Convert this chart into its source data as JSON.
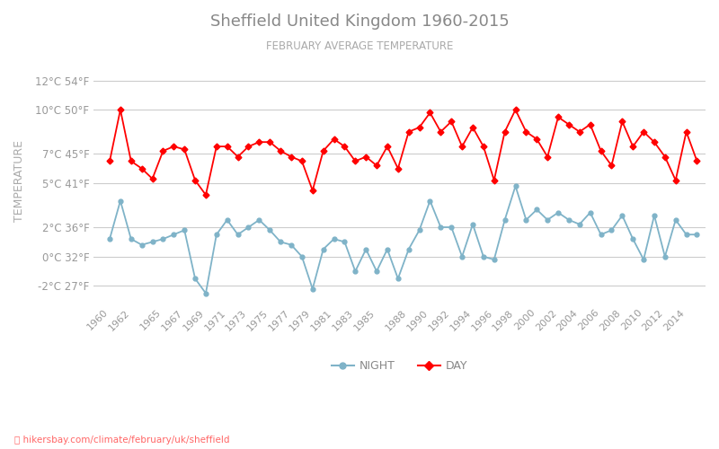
{
  "title": "Sheffield United Kingdom 1960-2015",
  "subtitle": "FEBRUARY AVERAGE TEMPERATURE",
  "ylabel": "TEMPERATURE",
  "footer": "hikersbay.com/climate/february/uk/sheffield",
  "bg_color": "#ffffff",
  "grid_color": "#cccccc",
  "tick_color": "#999999",
  "years": [
    1960,
    1961,
    1962,
    1963,
    1964,
    1965,
    1966,
    1967,
    1968,
    1969,
    1970,
    1971,
    1972,
    1973,
    1974,
    1975,
    1976,
    1977,
    1978,
    1979,
    1980,
    1981,
    1982,
    1983,
    1984,
    1985,
    1986,
    1987,
    1988,
    1989,
    1990,
    1991,
    1992,
    1993,
    1994,
    1995,
    1996,
    1997,
    1998,
    1999,
    2000,
    2001,
    2002,
    2003,
    2004,
    2005,
    2006,
    2007,
    2008,
    2009,
    2010,
    2011,
    2012,
    2013,
    2014,
    2015
  ],
  "day_temps": [
    6.5,
    10.0,
    6.5,
    6.0,
    5.3,
    7.2,
    7.5,
    7.3,
    5.2,
    4.2,
    7.5,
    7.5,
    6.8,
    7.5,
    7.8,
    7.8,
    7.2,
    6.8,
    6.5,
    4.5,
    7.2,
    8.0,
    7.5,
    6.5,
    6.8,
    6.2,
    7.5,
    6.0,
    8.5,
    8.8,
    9.8,
    8.5,
    9.2,
    7.5,
    8.8,
    7.5,
    5.2,
    8.5,
    10.0,
    8.5,
    8.0,
    6.8,
    9.5,
    9.0,
    8.5,
    9.0,
    7.2,
    6.2,
    9.2,
    7.5,
    8.5,
    7.8,
    6.8,
    5.2,
    8.5,
    6.5
  ],
  "night_temps": [
    1.2,
    3.8,
    1.2,
    0.8,
    1.0,
    1.2,
    1.5,
    1.8,
    -1.5,
    -2.5,
    1.5,
    2.5,
    1.5,
    2.0,
    2.5,
    1.8,
    1.0,
    0.8,
    0.0,
    -2.2,
    0.5,
    1.2,
    1.0,
    -1.0,
    0.5,
    -1.0,
    0.5,
    -1.5,
    0.5,
    1.8,
    3.8,
    2.0,
    2.0,
    0.0,
    2.2,
    0.0,
    -0.2,
    2.5,
    4.8,
    2.5,
    3.2,
    2.5,
    3.0,
    2.5,
    2.2,
    3.0,
    1.5,
    1.8,
    2.8,
    1.2,
    -0.2,
    2.8,
    0.0,
    2.5,
    1.5,
    1.5
  ],
  "yticks_celsius": [
    -2,
    0,
    2,
    5,
    7,
    10,
    12
  ],
  "yticks_fahrenheit": [
    27,
    32,
    36,
    41,
    45,
    50,
    54
  ],
  "xtick_years": [
    1960,
    1962,
    1965,
    1967,
    1969,
    1971,
    1973,
    1975,
    1977,
    1979,
    1981,
    1983,
    1985,
    1988,
    1990,
    1992,
    1994,
    1996,
    1998,
    2000,
    2002,
    2004,
    2006,
    2008,
    2010,
    2012,
    2014
  ],
  "day_color": "#ff0000",
  "night_color": "#7fb3c8",
  "footer_color": "#ff6666",
  "ylabel_color": "#aaaaaa",
  "title_color": "#888888",
  "subtitle_color": "#aaaaaa"
}
